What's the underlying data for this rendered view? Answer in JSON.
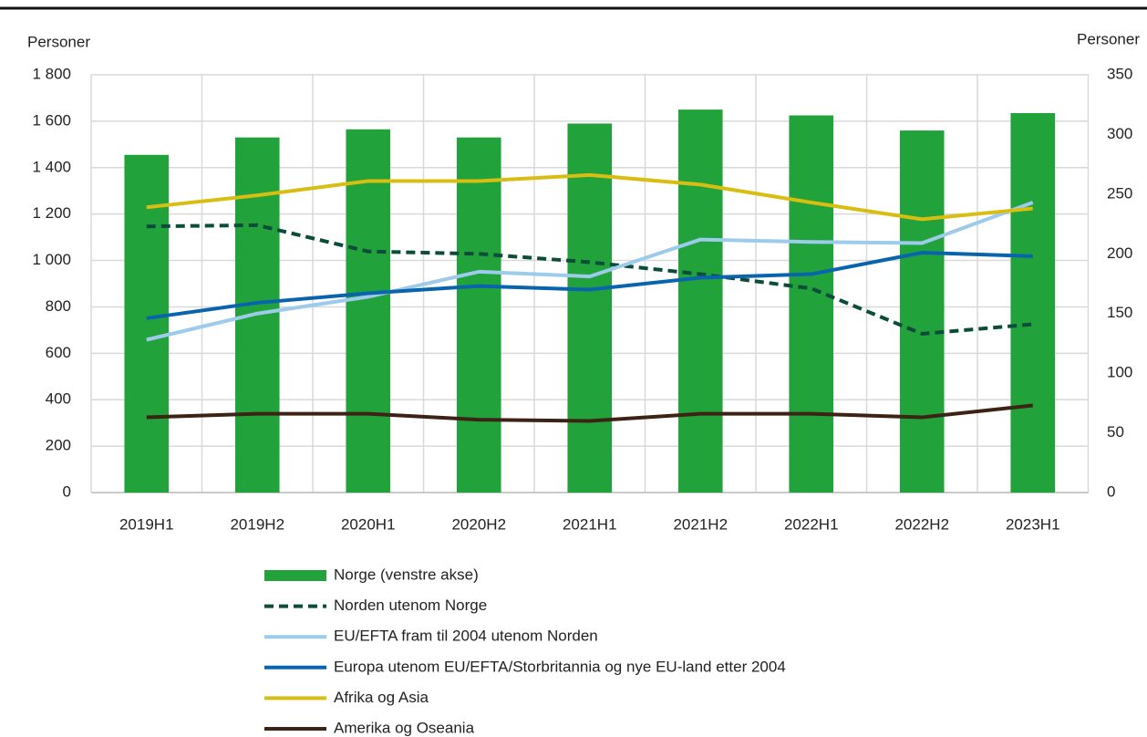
{
  "chart_data": {
    "type": "combo",
    "y_label": "Personer",
    "y2_label": "Personer",
    "categories": [
      "2019H1",
      "2019H2",
      "2020H1",
      "2020H2",
      "2021H1",
      "2021H2",
      "2022H1",
      "2022H2",
      "2023H1"
    ],
    "series": [
      {
        "name": "Norge (venstre akse)",
        "type": "bar",
        "axis": "y",
        "color": "#22a23a",
        "values": [
          1455,
          1530,
          1565,
          1530,
          1590,
          1650,
          1625,
          1560,
          1635
        ]
      },
      {
        "name": "Norden utenom Norge",
        "type": "line",
        "axis": "y2",
        "color": "#0b4d3a",
        "dashed": true,
        "values": [
          223,
          224,
          202,
          200,
          193,
          183,
          171,
          133,
          141
        ]
      },
      {
        "name": "EU/EFTA fram til 2004 utenom Norden",
        "type": "line",
        "axis": "y2",
        "color": "#9ccbeb",
        "values": [
          128,
          150,
          164,
          185,
          181,
          212,
          210,
          209,
          243
        ]
      },
      {
        "name": "Europa utenom EU/EFTA/Storbritannia og nye EU-land etter 2004",
        "type": "line",
        "axis": "y2",
        "color": "#0a64ad",
        "values": [
          146,
          159,
          167,
          173,
          170,
          180,
          183,
          201,
          198
        ]
      },
      {
        "name": "Afrika og Asia",
        "type": "line",
        "axis": "y2",
        "color": "#d8bd12",
        "values": [
          239,
          249,
          261,
          261,
          266,
          258,
          243,
          229,
          238
        ]
      },
      {
        "name": "Amerika og Oseania",
        "type": "line",
        "axis": "y2",
        "color": "#3d2216",
        "values": [
          63,
          66,
          66,
          61,
          60,
          66,
          66,
          63,
          73
        ]
      }
    ],
    "ylim": [
      0,
      1800
    ],
    "yticks": [
      0,
      200,
      400,
      600,
      800,
      {
        "value": 1000,
        "label": "1 000"
      },
      {
        "value": 1200,
        "label": "1 200"
      },
      {
        "value": 1400,
        "label": "1 400"
      },
      {
        "value": 1600,
        "label": "1 600"
      },
      {
        "value": 1800,
        "label": "1 800"
      }
    ],
    "y2lim": [
      0,
      350
    ],
    "y2ticks": [
      0,
      50,
      100,
      150,
      200,
      250,
      300,
      350
    ],
    "grid": true
  }
}
